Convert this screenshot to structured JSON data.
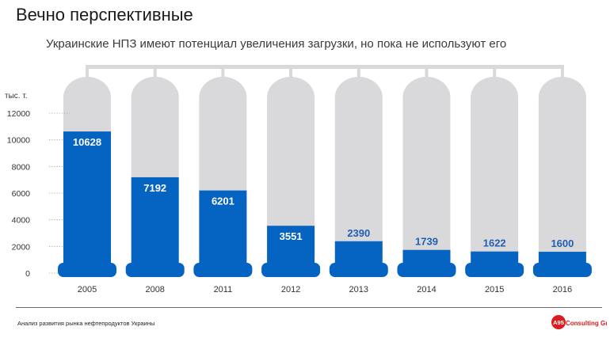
{
  "page": {
    "title": "Вечно перспективные",
    "subtitle": "Украинские НПЗ имеют потенциал увеличения загрузки, но пока не используют его",
    "footer": "Анализ развития рынка нефтепродуктов Украины",
    "logo_text": "Consulting Group",
    "logo_mark": "A95"
  },
  "colors": {
    "bar": "#0563C1",
    "tank": "#D9D9DB",
    "label": "#1F5FB5",
    "axis_text": "#333333",
    "brand_red": "#D81E1E"
  },
  "chart_data": {
    "type": "bar",
    "categories": [
      "2005",
      "2008",
      "2011",
      "2012",
      "2013",
      "2014",
      "2015",
      "2016"
    ],
    "values": [
      10628,
      7192,
      6201,
      3551,
      2390,
      1739,
      1622,
      1600
    ],
    "ylabel": "тыс. т.",
    "ylim": [
      0,
      12000
    ],
    "yticks": [
      0,
      2000,
      4000,
      6000,
      8000,
      10000,
      12000
    ],
    "grid": false,
    "legend": "none"
  }
}
